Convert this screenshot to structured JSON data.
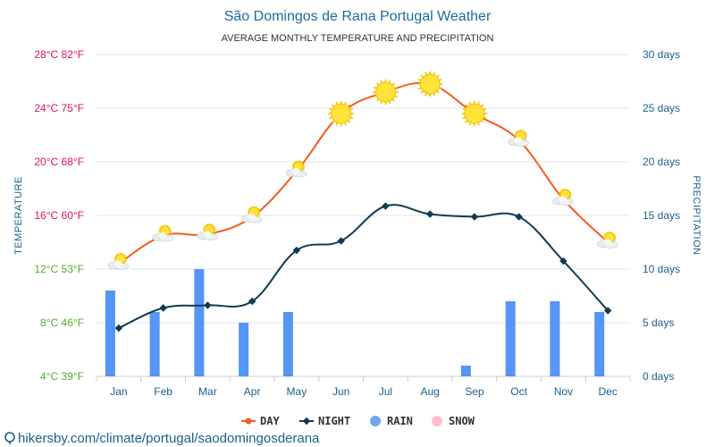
{
  "colors": {
    "day": "#f25c1e",
    "night": "#103b55",
    "rain": "#5595f5",
    "snow": "#ffc0cb",
    "title": "#1a6c9c",
    "grid": "#e6e6e6",
    "right_axis": "#1a5f8a"
  },
  "footer": {
    "text": "hikersby.com/climate/portugal/saodomingosderana"
  },
  "chart_data": {
    "type": "line",
    "title": "São Domingos de Rana Portugal Weather",
    "subtitle": "AVERAGE MONTHLY TEMPERATURE AND PRECIPITATION",
    "ylabel": "TEMPERATURE",
    "y2label": "PRECIPITATION",
    "categories": [
      "Jan",
      "Feb",
      "Mar",
      "Apr",
      "May",
      "Jun",
      "Jul",
      "Aug",
      "Sep",
      "Oct",
      "Nov",
      "Dec"
    ],
    "ylim": [
      4,
      28
    ],
    "y2lim": [
      0,
      30
    ],
    "yticks": [
      {
        "value": 28,
        "label": "28°C 82°F",
        "color": "#e0105a"
      },
      {
        "value": 24,
        "label": "24°C 75°F",
        "color": "#e0105a"
      },
      {
        "value": 20,
        "label": "20°C 68°F",
        "color": "#e0105a"
      },
      {
        "value": 16,
        "label": "16°C 60°F",
        "color": "#e0105a"
      },
      {
        "value": 12,
        "label": "12°C 53°F",
        "color": "#4caf2a"
      },
      {
        "value": 8,
        "label": "8°C 46°F",
        "color": "#4caf2a"
      },
      {
        "value": 4,
        "label": "4°C 39°F",
        "color": "#4caf2a"
      }
    ],
    "y2ticks": [
      {
        "value": 30,
        "label": "30 days"
      },
      {
        "value": 25,
        "label": "25 days"
      },
      {
        "value": 20,
        "label": "20 days"
      },
      {
        "value": 15,
        "label": "15 days"
      },
      {
        "value": 10,
        "label": "10 days"
      },
      {
        "value": 5,
        "label": "5 days"
      },
      {
        "value": 0,
        "label": "0 days"
      }
    ],
    "series": [
      {
        "name": "DAY",
        "axis": "left",
        "kind": "line",
        "values": [
          12.4,
          14.5,
          14.6,
          15.9,
          19.3,
          23.6,
          25.2,
          25.8,
          23.6,
          21.6,
          17.2,
          14.0
        ],
        "icons": [
          "partly-cloudy",
          "partly-cloudy",
          "partly-cloudy",
          "partly-cloudy",
          "partly-cloudy",
          "sunny",
          "sunny",
          "sunny",
          "sunny",
          "partly-cloudy",
          "partly-cloudy",
          "partly-cloudy"
        ]
      },
      {
        "name": "NIGHT",
        "axis": "left",
        "kind": "line",
        "values": [
          7.6,
          9.1,
          9.3,
          9.6,
          13.4,
          14.1,
          16.7,
          16.1,
          15.9,
          15.9,
          12.6,
          8.9
        ]
      },
      {
        "name": "RAIN",
        "axis": "right",
        "kind": "bar",
        "values": [
          8,
          6,
          10,
          5,
          6,
          0,
          0,
          0,
          1,
          7,
          7,
          6
        ]
      },
      {
        "name": "SNOW",
        "axis": "right",
        "kind": "bar",
        "values": [
          0,
          0,
          0,
          0,
          0,
          0,
          0,
          0,
          0,
          0,
          0,
          0
        ]
      }
    ],
    "legend": [
      "DAY",
      "NIGHT",
      "RAIN",
      "SNOW"
    ],
    "legend_position": "bottom-center",
    "grid": true
  }
}
